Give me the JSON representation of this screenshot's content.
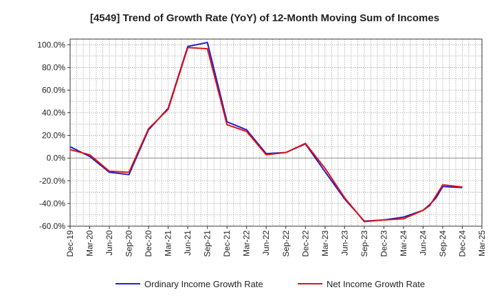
{
  "chart_data": {
    "type": "line",
    "title": "[4549]  Trend of Growth Rate (YoY) of 12-Month Moving Sum of Incomes",
    "xlabel": "",
    "ylabel": "",
    "ylim": [
      -60,
      105
    ],
    "yticks": [
      100,
      80,
      60,
      40,
      20,
      0,
      -20,
      -40,
      -60
    ],
    "ytick_labels": [
      "100.0%",
      "80.0%",
      "60.0%",
      "40.0%",
      "20.0%",
      "0.0%",
      "-20.0%",
      "-40.0%",
      "-60.0%"
    ],
    "x_tick_labels": [
      "Dec-19",
      "Mar-20",
      "Jun-20",
      "Sep-20",
      "Dec-20",
      "Mar-21",
      "Jun-21",
      "Sep-21",
      "Dec-21",
      "Mar-22",
      "Jun-22",
      "Sep-22",
      "Dec-22",
      "Mar-23",
      "Jun-23",
      "Sep-23",
      "Dec-23",
      "Mar-24",
      "Jun-24",
      "Sep-24",
      "Dec-24",
      "Mar-25"
    ],
    "x_months": [
      "2019-12",
      "2020-01",
      "2020-02",
      "2020-03",
      "2020-04",
      "2020-05",
      "2020-06",
      "2020-07",
      "2020-08",
      "2020-09",
      "2020-10",
      "2020-11",
      "2020-12",
      "2021-01",
      "2021-02",
      "2021-03",
      "2021-04",
      "2021-05",
      "2021-06",
      "2021-07",
      "2021-08",
      "2021-09",
      "2021-10",
      "2021-11",
      "2021-12",
      "2022-01",
      "2022-02",
      "2022-03",
      "2022-04",
      "2022-05",
      "2022-06",
      "2022-07",
      "2022-08",
      "2022-09",
      "2022-10",
      "2022-11",
      "2022-12",
      "2023-01",
      "2023-02",
      "2023-03",
      "2023-04",
      "2023-05",
      "2023-06",
      "2023-07",
      "2023-08",
      "2023-09",
      "2023-10",
      "2023-11",
      "2023-12",
      "2024-01",
      "2024-02",
      "2024-03",
      "2024-04",
      "2024-05",
      "2024-06",
      "2024-07",
      "2024-08",
      "2024-09",
      "2024-10",
      "2024-11",
      "2024-12",
      "2025-01",
      "2025-02",
      "2025-03"
    ],
    "grid": true,
    "legend_position": "bottom",
    "series": [
      {
        "name": "Ordinary Income Growth Rate",
        "color": "#1f1fcc",
        "points": [
          [
            "2019-12",
            10
          ],
          [
            "2020-03",
            1.5
          ],
          [
            "2020-06",
            -12.5
          ],
          [
            "2020-09",
            -14.5
          ],
          [
            "2020-12",
            25
          ],
          [
            "2021-03",
            44
          ],
          [
            "2021-06",
            98.5
          ],
          [
            "2021-09",
            102
          ],
          [
            "2021-12",
            32
          ],
          [
            "2022-03",
            25
          ],
          [
            "2022-06",
            4
          ],
          [
            "2022-09",
            5
          ],
          [
            "2022-12",
            12.5
          ],
          [
            "2023-03",
            -12
          ],
          [
            "2023-06",
            -36
          ],
          [
            "2023-09",
            -55.5
          ],
          [
            "2023-12",
            -54.5
          ],
          [
            "2024-03",
            -52
          ],
          [
            "2024-06",
            -46
          ],
          [
            "2024-07",
            -41
          ],
          [
            "2024-08",
            -35
          ],
          [
            "2024-09",
            -25
          ],
          [
            "2024-12",
            -26
          ]
        ]
      },
      {
        "name": "Net Income Growth Rate",
        "color": "#e01010",
        "points": [
          [
            "2019-12",
            7.5
          ],
          [
            "2020-03",
            3
          ],
          [
            "2020-06",
            -11.5
          ],
          [
            "2020-09",
            -12.5
          ],
          [
            "2020-12",
            26
          ],
          [
            "2021-03",
            43
          ],
          [
            "2021-06",
            97.5
          ],
          [
            "2021-09",
            96.5
          ],
          [
            "2021-12",
            29.5
          ],
          [
            "2022-03",
            23.5
          ],
          [
            "2022-06",
            3
          ],
          [
            "2022-09",
            5
          ],
          [
            "2022-12",
            13
          ],
          [
            "2023-03",
            -9
          ],
          [
            "2023-06",
            -35
          ],
          [
            "2023-09",
            -56
          ],
          [
            "2023-12",
            -54.5
          ],
          [
            "2024-03",
            -53.5
          ],
          [
            "2024-06",
            -46
          ],
          [
            "2024-07",
            -42
          ],
          [
            "2024-08",
            -33
          ],
          [
            "2024-09",
            -23.5
          ],
          [
            "2024-12",
            -25.5
          ]
        ]
      }
    ]
  }
}
